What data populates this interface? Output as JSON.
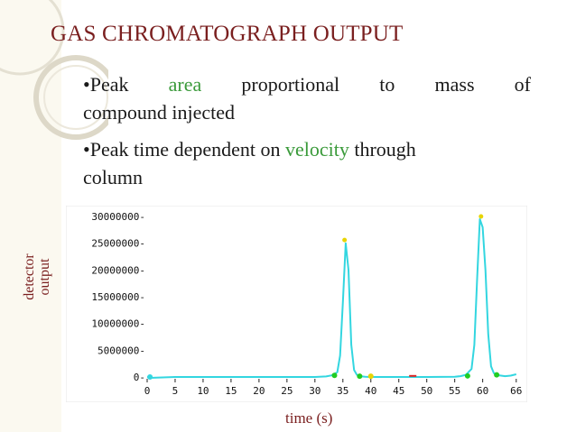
{
  "slide": {
    "title": "GAS CHROMATOGRAPH OUTPUT",
    "bullet1": {
      "prefix": "•Peak",
      "highlight": "area",
      "rest_line1": "proportional to mass of",
      "rest_line2": "compound injected"
    },
    "bullet2": {
      "prefix": "•Peak time dependent on",
      "highlight": "velocity",
      "suffix": "through",
      "line2": "column"
    },
    "accent_color": "#7a1f1f",
    "highlight_color": "#3a9a3a"
  },
  "chart_data": {
    "type": "line",
    "ylabel_line1": "detector",
    "ylabel_line2": "output",
    "xlabel": "time (s)",
    "xlim": [
      0,
      67
    ],
    "ylim": [
      0,
      30000000
    ],
    "x_ticks": [
      "0",
      "5",
      "10",
      "15",
      "20",
      "25",
      "30",
      "35",
      "40",
      "45",
      "50",
      "55",
      "60",
      "66"
    ],
    "y_ticks": [
      "0-",
      "5000000-",
      "10000000-",
      "15000000-",
      "20000000-",
      "25000000-",
      "30000000-"
    ],
    "line_color": "#33d6e0",
    "series": [
      {
        "x": [
          0,
          1,
          5,
          30,
          32,
          33,
          34,
          34.5,
          35,
          35.5,
          36,
          36.5,
          37,
          37.5,
          38,
          39,
          40,
          45,
          50,
          55,
          56,
          57,
          58,
          58.5,
          59,
          59.5,
          60,
          60.5,
          61,
          61.5,
          62,
          63,
          64,
          65,
          66
        ],
        "values": [
          0,
          -150000,
          0,
          0,
          100000,
          300000,
          900000,
          4000000,
          14000000,
          25000000,
          20000000,
          6000000,
          1300000,
          400000,
          150000,
          50000,
          0,
          0,
          0,
          50000,
          150000,
          400000,
          1500000,
          6000000,
          18000000,
          29500000,
          28000000,
          20000000,
          8000000,
          2000000,
          700000,
          300000,
          150000,
          250000,
          500000
        ]
      }
    ],
    "peak_markers": [
      {
        "x": 35.3,
        "y": 25600000,
        "color": "#e8d400"
      },
      {
        "x": 59.7,
        "y": 30000000,
        "color": "#e8d400"
      }
    ],
    "baseline_markers": [
      {
        "x": 0.5,
        "y": 0,
        "color": "#33d6e0"
      },
      {
        "x": 33.5,
        "y": 300000,
        "color": "#22cc22"
      },
      {
        "x": 38,
        "y": 150000,
        "color": "#22cc22"
      },
      {
        "x": 40,
        "y": 150000,
        "color": "#e8d400"
      },
      {
        "x": 57.3,
        "y": 200000,
        "color": "#22cc22"
      },
      {
        "x": 62.5,
        "y": 400000,
        "color": "#22cc22"
      }
    ],
    "dash_markers": [
      {
        "x": 47.5,
        "y": 200000,
        "color": "#dd2222"
      }
    ]
  }
}
